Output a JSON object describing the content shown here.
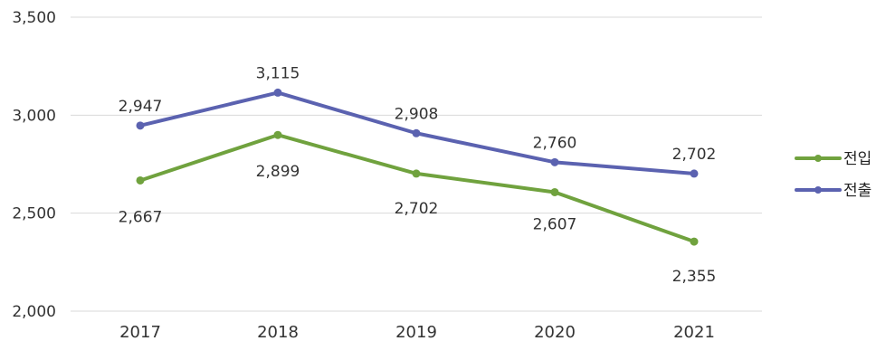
{
  "chart_data": {
    "type": "line",
    "title": "",
    "xlabel": "",
    "ylabel": "",
    "categories": [
      "2017",
      "2018",
      "2019",
      "2020",
      "2021"
    ],
    "ylim": [
      2000,
      3500
    ],
    "yticks": [
      "2,000",
      "2,500",
      "3,000",
      "3,500"
    ],
    "grid": "horizontal",
    "legend_position": "right",
    "series": [
      {
        "name": "전입",
        "color": "#70a23e",
        "values": [
          2667,
          2899,
          2702,
          2607,
          2355
        ],
        "labels": [
          "2,667",
          "2,899",
          "2,702",
          "2,607",
          "2,355"
        ]
      },
      {
        "name": "전출",
        "color": "#5b62b0",
        "values": [
          2947,
          3115,
          2908,
          2760,
          2702
        ],
        "labels": [
          "2,947",
          "3,115",
          "2,908",
          "2,760",
          "2,702"
        ]
      }
    ]
  }
}
